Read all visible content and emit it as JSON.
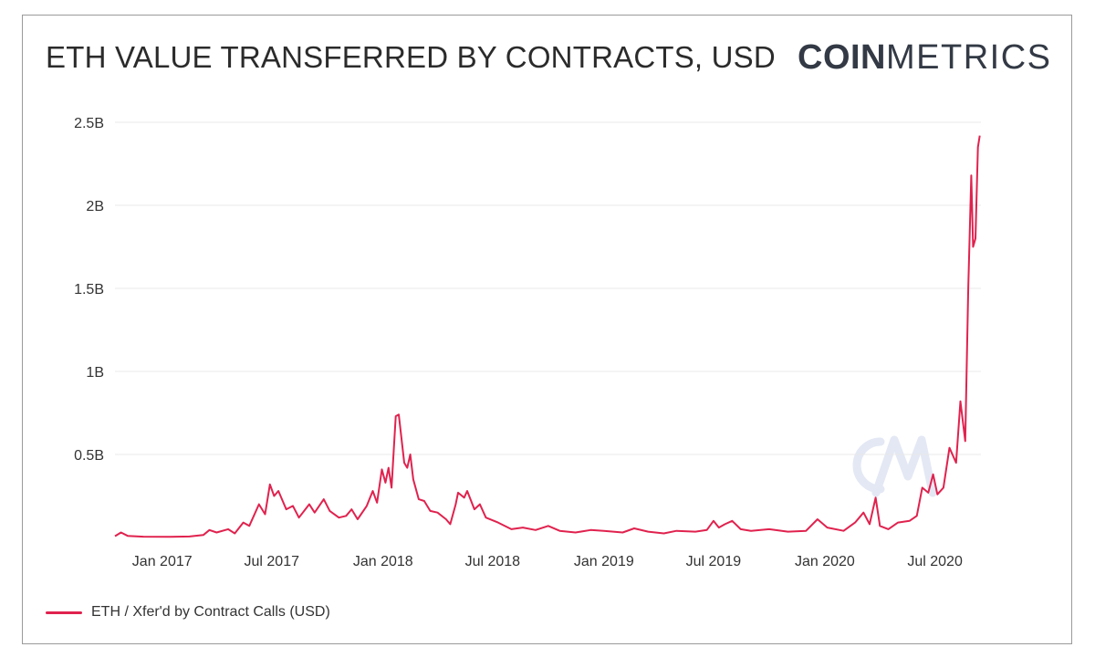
{
  "header": {
    "title": "ETH VALUE TRANSFERRED BY CONTRACTS, USD",
    "logo_bold": "COIN",
    "logo_light": "METRICS"
  },
  "colors": {
    "line": "#e0224e",
    "grid": "#e9e9e9",
    "text": "#333333",
    "watermark": "#e3e8f4"
  },
  "chart_data": {
    "type": "line",
    "title": "ETH VALUE TRANSFERRED BY CONTRACTS, USD",
    "xlabel": "",
    "ylabel": "",
    "ylim": [
      0,
      2500000000
    ],
    "xlim": [
      "2016-10-15",
      "2020-09-15"
    ],
    "grid": true,
    "legend_position": "bottom-left",
    "y_ticks": [
      {
        "value": 500000000,
        "label": "0.5B"
      },
      {
        "value": 1000000000,
        "label": "1B"
      },
      {
        "value": 1500000000,
        "label": "1.5B"
      },
      {
        "value": 2000000000,
        "label": "2B"
      },
      {
        "value": 2500000000,
        "label": "2.5B"
      }
    ],
    "x_ticks": [
      {
        "value": "2017-01-01",
        "label": "Jan 2017"
      },
      {
        "value": "2017-07-01",
        "label": "Jul 2017"
      },
      {
        "value": "2018-01-01",
        "label": "Jan 2018"
      },
      {
        "value": "2018-07-01",
        "label": "Jul 2018"
      },
      {
        "value": "2019-01-01",
        "label": "Jan 2019"
      },
      {
        "value": "2019-07-01",
        "label": "Jul 2019"
      },
      {
        "value": "2020-01-01",
        "label": "Jan 2020"
      },
      {
        "value": "2020-07-01",
        "label": "Jul 2020"
      }
    ],
    "series": [
      {
        "name": "ETH / Xfer'd by Contract Calls (USD)",
        "points": [
          [
            "2016-10-15",
            8000000
          ],
          [
            "2016-10-25",
            30000000
          ],
          [
            "2016-11-05",
            10000000
          ],
          [
            "2016-12-01",
            5000000
          ],
          [
            "2017-01-15",
            4000000
          ],
          [
            "2017-02-15",
            6000000
          ],
          [
            "2017-03-10",
            15000000
          ],
          [
            "2017-03-20",
            45000000
          ],
          [
            "2017-04-01",
            30000000
          ],
          [
            "2017-04-20",
            50000000
          ],
          [
            "2017-05-01",
            25000000
          ],
          [
            "2017-05-15",
            90000000
          ],
          [
            "2017-05-25",
            70000000
          ],
          [
            "2017-06-10",
            200000000
          ],
          [
            "2017-06-20",
            140000000
          ],
          [
            "2017-06-28",
            320000000
          ],
          [
            "2017-07-05",
            250000000
          ],
          [
            "2017-07-12",
            280000000
          ],
          [
            "2017-07-25",
            170000000
          ],
          [
            "2017-08-05",
            190000000
          ],
          [
            "2017-08-15",
            120000000
          ],
          [
            "2017-09-01",
            200000000
          ],
          [
            "2017-09-10",
            150000000
          ],
          [
            "2017-09-25",
            230000000
          ],
          [
            "2017-10-05",
            160000000
          ],
          [
            "2017-10-20",
            120000000
          ],
          [
            "2017-11-01",
            130000000
          ],
          [
            "2017-11-10",
            170000000
          ],
          [
            "2017-11-20",
            110000000
          ],
          [
            "2017-12-05",
            190000000
          ],
          [
            "2017-12-15",
            280000000
          ],
          [
            "2017-12-22",
            210000000
          ],
          [
            "2017-12-30",
            410000000
          ],
          [
            "2018-01-05",
            330000000
          ],
          [
            "2018-01-10",
            420000000
          ],
          [
            "2018-01-15",
            300000000
          ],
          [
            "2018-01-22",
            730000000
          ],
          [
            "2018-01-27",
            740000000
          ],
          [
            "2018-02-05",
            450000000
          ],
          [
            "2018-02-10",
            420000000
          ],
          [
            "2018-02-15",
            500000000
          ],
          [
            "2018-02-20",
            350000000
          ],
          [
            "2018-03-01",
            230000000
          ],
          [
            "2018-03-10",
            220000000
          ],
          [
            "2018-03-20",
            160000000
          ],
          [
            "2018-04-01",
            150000000
          ],
          [
            "2018-04-15",
            110000000
          ],
          [
            "2018-04-22",
            80000000
          ],
          [
            "2018-05-01",
            200000000
          ],
          [
            "2018-05-05",
            270000000
          ],
          [
            "2018-05-15",
            240000000
          ],
          [
            "2018-05-20",
            280000000
          ],
          [
            "2018-06-01",
            170000000
          ],
          [
            "2018-06-10",
            200000000
          ],
          [
            "2018-06-20",
            120000000
          ],
          [
            "2018-07-10",
            90000000
          ],
          [
            "2018-08-01",
            50000000
          ],
          [
            "2018-08-20",
            60000000
          ],
          [
            "2018-09-10",
            45000000
          ],
          [
            "2018-10-01",
            70000000
          ],
          [
            "2018-10-20",
            40000000
          ],
          [
            "2018-11-15",
            30000000
          ],
          [
            "2018-12-10",
            45000000
          ],
          [
            "2019-01-01",
            40000000
          ],
          [
            "2019-02-01",
            30000000
          ],
          [
            "2019-02-20",
            55000000
          ],
          [
            "2019-03-15",
            35000000
          ],
          [
            "2019-04-10",
            25000000
          ],
          [
            "2019-05-01",
            40000000
          ],
          [
            "2019-06-01",
            35000000
          ],
          [
            "2019-06-20",
            45000000
          ],
          [
            "2019-07-01",
            100000000
          ],
          [
            "2019-07-10",
            60000000
          ],
          [
            "2019-07-20",
            80000000
          ],
          [
            "2019-08-01",
            100000000
          ],
          [
            "2019-08-15",
            50000000
          ],
          [
            "2019-09-01",
            40000000
          ],
          [
            "2019-10-01",
            50000000
          ],
          [
            "2019-11-01",
            35000000
          ],
          [
            "2019-12-01",
            40000000
          ],
          [
            "2019-12-20",
            110000000
          ],
          [
            "2020-01-05",
            60000000
          ],
          [
            "2020-02-01",
            40000000
          ],
          [
            "2020-02-20",
            90000000
          ],
          [
            "2020-03-05",
            150000000
          ],
          [
            "2020-03-15",
            80000000
          ],
          [
            "2020-03-25",
            240000000
          ],
          [
            "2020-04-01",
            70000000
          ],
          [
            "2020-04-15",
            50000000
          ],
          [
            "2020-05-01",
            90000000
          ],
          [
            "2020-05-20",
            100000000
          ],
          [
            "2020-06-01",
            130000000
          ],
          [
            "2020-06-10",
            300000000
          ],
          [
            "2020-06-20",
            270000000
          ],
          [
            "2020-06-28",
            380000000
          ],
          [
            "2020-07-05",
            260000000
          ],
          [
            "2020-07-15",
            300000000
          ],
          [
            "2020-07-25",
            540000000
          ],
          [
            "2020-08-05",
            450000000
          ],
          [
            "2020-08-12",
            820000000
          ],
          [
            "2020-08-20",
            580000000
          ],
          [
            "2020-08-25",
            1500000000
          ],
          [
            "2020-08-30",
            2180000000
          ],
          [
            "2020-09-02",
            1750000000
          ],
          [
            "2020-09-06",
            1800000000
          ],
          [
            "2020-09-10",
            2350000000
          ],
          [
            "2020-09-13",
            2420000000
          ]
        ]
      }
    ]
  }
}
